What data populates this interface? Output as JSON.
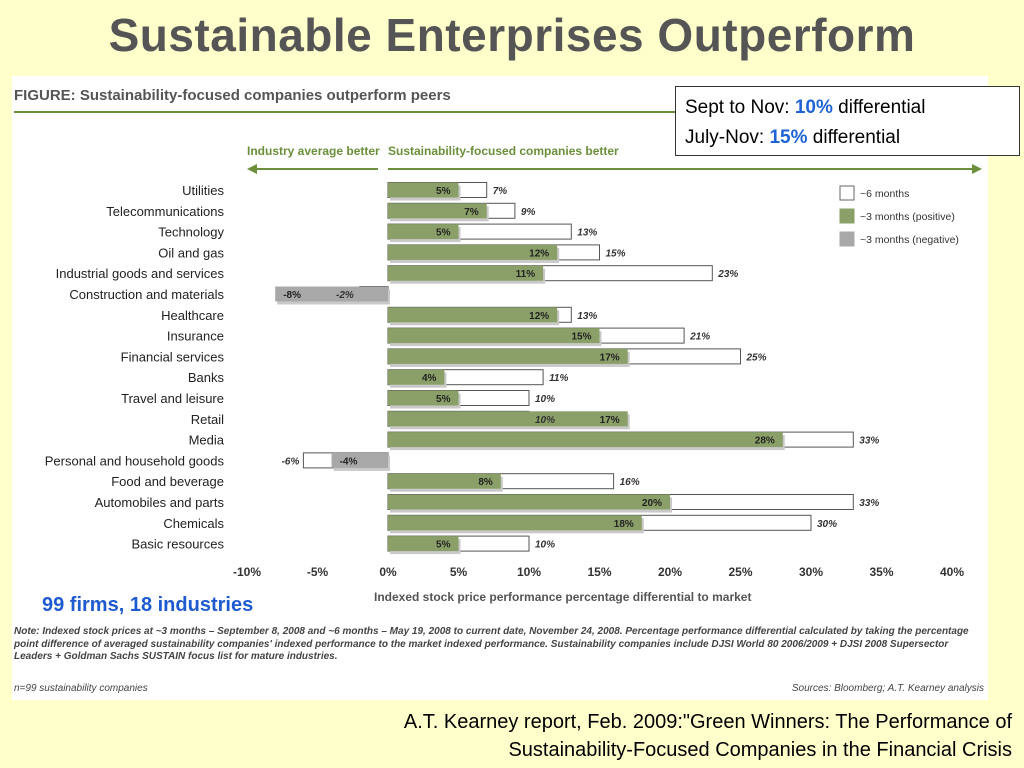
{
  "slide": {
    "title": "Sustainable Enterprises Outperform"
  },
  "callout": {
    "line1_prefix": "Sept to Nov: ",
    "line1_value": "10%",
    "line1_suffix": " differential",
    "line2_prefix": "July-Nov: ",
    "line2_value": "15%",
    "line2_suffix": " differential"
  },
  "firms_label": "99 firms, 18 industries",
  "note": "Note: Indexed stock prices at ~3 months – September 8, 2008 and ~6 months – May 19, 2008 to current date, November 24, 2008. Percentage performance differential calculated by taking the percentage point difference of averaged sustainability companies' indexed performance to the market indexed performance. Sustainability companies include DJSI World 80 2006/2009 + DJSI 2008 Supersector Leaders + Goldman Sachs SUSTAIN focus list for mature industries.",
  "n_label": "n=99 sustainability companies",
  "sources": "Sources: Bloomberg; A.T. Kearney analysis",
  "citation": {
    "line1": "A.T. Kearney report, Feb. 2009:\"Green Winners: The Performance of",
    "line2": "Sustainability-Focused Companies in the Financial Crisis"
  },
  "colors": {
    "background": "#ffffcc",
    "positive": "#8aa068",
    "negative": "#a8a8a8",
    "figure_header": "#6b8f3a",
    "highlight": "#1f64d6"
  },
  "chart_data": {
    "type": "bar",
    "orientation": "horizontal",
    "title": "FIGURE: Sustainability-focused companies outperform peers",
    "left_header": "Industry average better",
    "right_header": "Sustainability-focused companies better",
    "xlabel": "Indexed stock price performance percentage differential to market",
    "xlim": [
      -10,
      40
    ],
    "xticks": [
      -10,
      -5,
      0,
      5,
      10,
      15,
      20,
      25,
      30,
      35,
      40
    ],
    "xtick_labels": [
      "-10%",
      "-5%",
      "0%",
      "5%",
      "10%",
      "15%",
      "20%",
      "25%",
      "30%",
      "35%",
      "40%"
    ],
    "legend": {
      "placement": "top-right",
      "entries": [
        "~6 months",
        "~3 months (positive)",
        "~3 months (negative)"
      ]
    },
    "categories": [
      "Utilities",
      "Telecommunications",
      "Technology",
      "Oil and gas",
      "Industrial goods and services",
      "Construction and materials",
      "Healthcare",
      "Insurance",
      "Financial services",
      "Banks",
      "Travel and leisure",
      "Retail",
      "Media",
      "Personal and household goods",
      "Food and beverage",
      "Automobiles and parts",
      "Chemicals",
      "Basic resources"
    ],
    "series": [
      {
        "name": "~6 months",
        "values": [
          7,
          9,
          13,
          15,
          23,
          -2,
          13,
          21,
          25,
          11,
          10,
          10,
          33,
          -6,
          16,
          33,
          30,
          10
        ]
      },
      {
        "name": "~3 months",
        "values": [
          5,
          7,
          5,
          12,
          11,
          -8,
          12,
          15,
          17,
          4,
          5,
          17,
          28,
          -4,
          8,
          20,
          18,
          5
        ]
      }
    ],
    "labels_6m": [
      "7%",
      "9%",
      "13%",
      "15%",
      "23%",
      "-2%",
      "13%",
      "21%",
      "25%",
      "11%",
      "10%",
      "10%",
      "33%",
      "-6%",
      "16%",
      "33%",
      "30%",
      "10%"
    ],
    "labels_3m": [
      "5%",
      "7%",
      "5%",
      "12%",
      "11%",
      "-8%",
      "12%",
      "15%",
      "17%",
      "4%",
      "5%",
      "17%",
      "28%",
      "-4%",
      "8%",
      "20%",
      "18%",
      "5%"
    ]
  }
}
